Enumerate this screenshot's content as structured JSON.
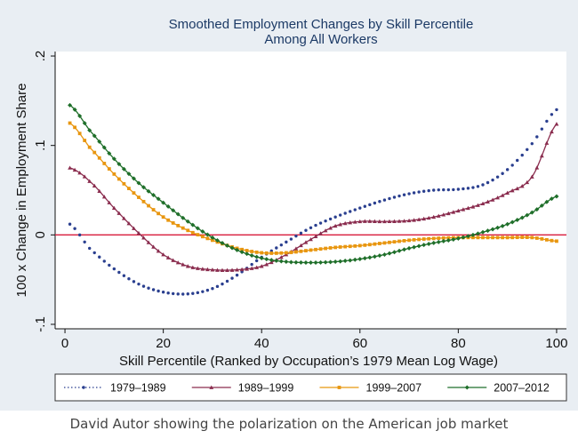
{
  "chart_data": {
    "type": "line",
    "title": "Smoothed Employment Changes by Skill Percentile",
    "subtitle": "Among All Workers",
    "xlabel": "Skill Percentile (Ranked by Occupation’s 1979 Mean Log Wage)",
    "ylabel": "100 x Change in Employment Share",
    "xlim": [
      -2,
      102
    ],
    "ylim": [
      -0.105,
      0.205
    ],
    "x_ticks": [
      0,
      20,
      40,
      60,
      80,
      100
    ],
    "x_tick_labels": [
      "0",
      "20",
      "40",
      "60",
      "80",
      "100"
    ],
    "y_ticks": [
      -0.1,
      0,
      0.1,
      0.2
    ],
    "y_tick_labels": [
      "-.1",
      "0",
      ".1",
      ".2"
    ],
    "reference_line": {
      "y": 0,
      "color": "#d81b3c"
    },
    "grid": false,
    "legend_position": "bottom",
    "series": [
      {
        "name": "1979–1989",
        "color": "#2a3f8f",
        "marker": "dot",
        "style": "dotted",
        "points": [
          [
            1,
            0.012
          ],
          [
            5,
            -0.015
          ],
          [
            10,
            -0.038
          ],
          [
            15,
            -0.055
          ],
          [
            20,
            -0.064
          ],
          [
            25,
            -0.066
          ],
          [
            30,
            -0.06
          ],
          [
            35,
            -0.045
          ],
          [
            40,
            -0.025
          ],
          [
            45,
            -0.008
          ],
          [
            50,
            0.008
          ],
          [
            55,
            0.02
          ],
          [
            60,
            0.03
          ],
          [
            65,
            0.039
          ],
          [
            70,
            0.046
          ],
          [
            75,
            0.05
          ],
          [
            80,
            0.051
          ],
          [
            85,
            0.056
          ],
          [
            90,
            0.073
          ],
          [
            95,
            0.102
          ],
          [
            100,
            0.14
          ]
        ]
      },
      {
        "name": "1989–1999",
        "color": "#8a2c4e",
        "marker": "triangle",
        "style": "solid",
        "points": [
          [
            1,
            0.075
          ],
          [
            5,
            0.06
          ],
          [
            10,
            0.03
          ],
          [
            15,
            0.002
          ],
          [
            20,
            -0.022
          ],
          [
            25,
            -0.035
          ],
          [
            30,
            -0.039
          ],
          [
            35,
            -0.039
          ],
          [
            40,
            -0.035
          ],
          [
            45,
            -0.022
          ],
          [
            50,
            -0.005
          ],
          [
            55,
            0.01
          ],
          [
            60,
            0.015
          ],
          [
            65,
            0.015
          ],
          [
            70,
            0.016
          ],
          [
            75,
            0.02
          ],
          [
            80,
            0.027
          ],
          [
            85,
            0.035
          ],
          [
            90,
            0.047
          ],
          [
            95,
            0.065
          ],
          [
            100,
            0.124
          ]
        ]
      },
      {
        "name": "1999–2007",
        "color": "#e8960f",
        "marker": "square",
        "style": "solid",
        "points": [
          [
            1,
            0.125
          ],
          [
            5,
            0.098
          ],
          [
            10,
            0.068
          ],
          [
            15,
            0.042
          ],
          [
            20,
            0.02
          ],
          [
            25,
            0.005
          ],
          [
            30,
            -0.006
          ],
          [
            35,
            -0.015
          ],
          [
            40,
            -0.02
          ],
          [
            45,
            -0.02
          ],
          [
            50,
            -0.017
          ],
          [
            55,
            -0.014
          ],
          [
            60,
            -0.012
          ],
          [
            65,
            -0.009
          ],
          [
            70,
            -0.006
          ],
          [
            75,
            -0.004
          ],
          [
            80,
            -0.003
          ],
          [
            85,
            -0.003
          ],
          [
            90,
            -0.003
          ],
          [
            95,
            -0.003
          ],
          [
            100,
            -0.007
          ]
        ]
      },
      {
        "name": "2007–2012",
        "color": "#1f6f2a",
        "marker": "diamond",
        "style": "solid",
        "points": [
          [
            1,
            0.145
          ],
          [
            5,
            0.117
          ],
          [
            10,
            0.085
          ],
          [
            15,
            0.058
          ],
          [
            20,
            0.036
          ],
          [
            25,
            0.015
          ],
          [
            30,
            -0.003
          ],
          [
            35,
            -0.017
          ],
          [
            40,
            -0.026
          ],
          [
            45,
            -0.03
          ],
          [
            50,
            -0.031
          ],
          [
            55,
            -0.03
          ],
          [
            60,
            -0.027
          ],
          [
            65,
            -0.022
          ],
          [
            70,
            -0.015
          ],
          [
            75,
            -0.009
          ],
          [
            80,
            -0.004
          ],
          [
            85,
            0.003
          ],
          [
            90,
            0.012
          ],
          [
            95,
            0.025
          ],
          [
            100,
            0.043
          ]
        ]
      }
    ]
  },
  "caption": "David Autor showing the polarization on the American job market"
}
